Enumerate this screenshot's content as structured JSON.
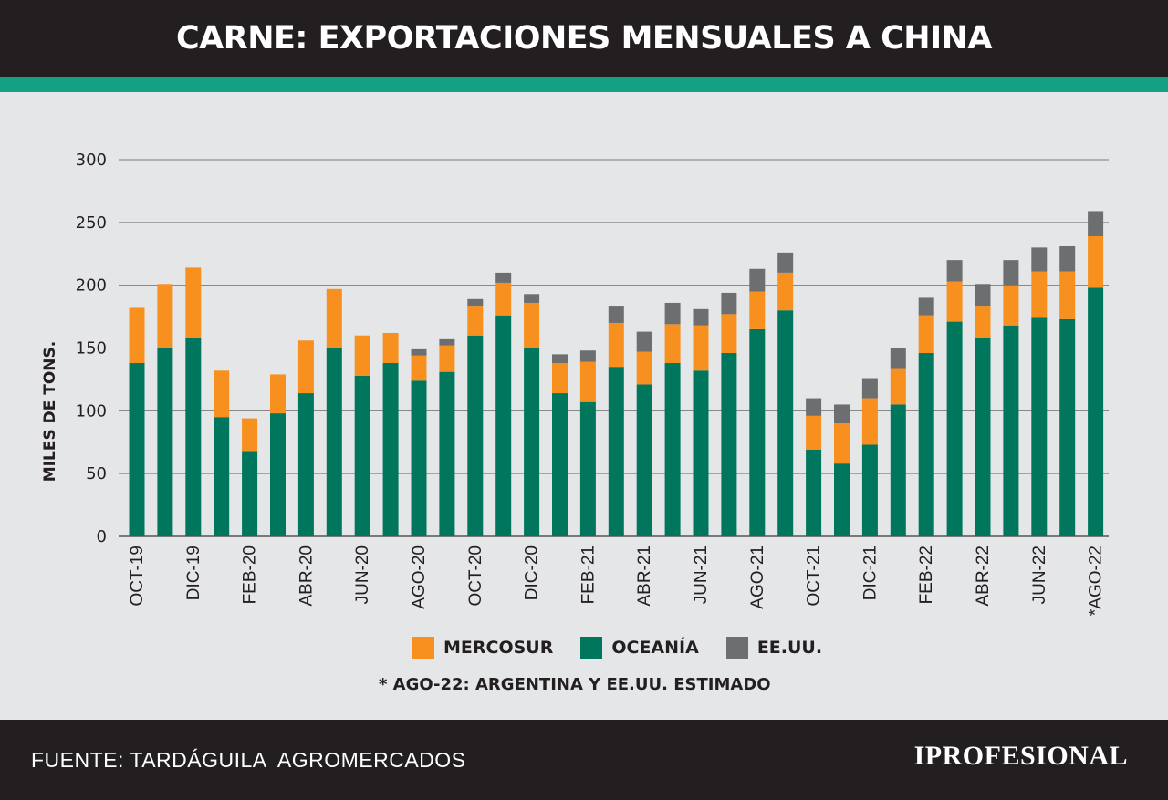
{
  "header": {
    "title": "CARNE: EXPORTACIONES MENSUALES A CHINA"
  },
  "footer": {
    "source": "FUENTE: TARDÁGUILA  AGROMERCADOS",
    "brand": "IPROFESIONAL"
  },
  "note": "* AGO-22: ARGENTINA Y EE.UU. ESTIMADO",
  "colors": {
    "mercosur": "#f7901e",
    "oceania": "#00775d",
    "eeuu": "#6d6e70",
    "accent": "#13a085",
    "dark": "#231f20"
  },
  "chart_data": {
    "type": "bar",
    "stacked": true,
    "title": "CARNE: EXPORTACIONES MENSUALES A CHINA",
    "ylabel": "MILES DE TONS.",
    "ylim": [
      0,
      300
    ],
    "yticks": [
      0,
      50,
      100,
      150,
      200,
      250,
      300
    ],
    "grid": true,
    "legend_position": "bottom",
    "x_tick_labels": [
      "OCT-19",
      "DIC-19",
      "FEB-20",
      "ABR-20",
      "JUN-20",
      "AGO-20",
      "OCT-20",
      "DIC-20",
      "FEB-21",
      "ABR-21",
      "JUN-21",
      "AGO-21",
      "OCT-21",
      "DIC-21",
      "FEB-22",
      "ABR-22",
      "JUN-22",
      "*AGO-22"
    ],
    "categories": [
      "OCT-19",
      "NOV-19",
      "DIC-19",
      "ENE-20",
      "FEB-20",
      "MAR-20",
      "ABR-20",
      "MAY-20",
      "JUN-20",
      "JUL-20",
      "AGO-20",
      "SEP-20",
      "OCT-20",
      "NOV-20",
      "DIC-20",
      "ENE-21",
      "FEB-21",
      "MAR-21",
      "ABR-21",
      "MAY-21",
      "JUN-21",
      "JUL-21",
      "AGO-21",
      "SEP-21",
      "OCT-21",
      "NOV-21",
      "DIC-21",
      "ENE-22",
      "FEB-22",
      "MAR-22",
      "ABR-22",
      "MAY-22",
      "JUN-22",
      "JUL-22",
      "*AGO-22"
    ],
    "series": [
      {
        "name": "OCEANÍA",
        "color": "#00775d",
        "values": [
          138,
          150,
          158,
          95,
          68,
          98,
          114,
          150,
          128,
          138,
          124,
          131,
          160,
          176,
          150,
          114,
          107,
          135,
          121,
          138,
          132,
          146,
          165,
          180,
          69,
          58,
          73,
          105,
          146,
          171,
          158,
          168,
          174,
          173,
          198
        ]
      },
      {
        "name": "MERCOSUR",
        "color": "#f7901e",
        "values": [
          44,
          51,
          56,
          37,
          26,
          31,
          42,
          47,
          32,
          24,
          20,
          21,
          23,
          26,
          36,
          24,
          32,
          35,
          26,
          31,
          36,
          31,
          30,
          30,
          27,
          32,
          37,
          29,
          30,
          32,
          25,
          32,
          37,
          38,
          41
        ]
      },
      {
        "name": "EE.UU.",
        "color": "#6d6e70",
        "values": [
          0,
          0,
          0,
          0,
          0,
          0,
          0,
          0,
          0,
          0,
          5,
          5,
          6,
          8,
          7,
          7,
          9,
          13,
          16,
          17,
          13,
          17,
          18,
          16,
          14,
          15,
          16,
          16,
          14,
          17,
          18,
          20,
          19,
          20,
          20
        ]
      }
    ]
  }
}
